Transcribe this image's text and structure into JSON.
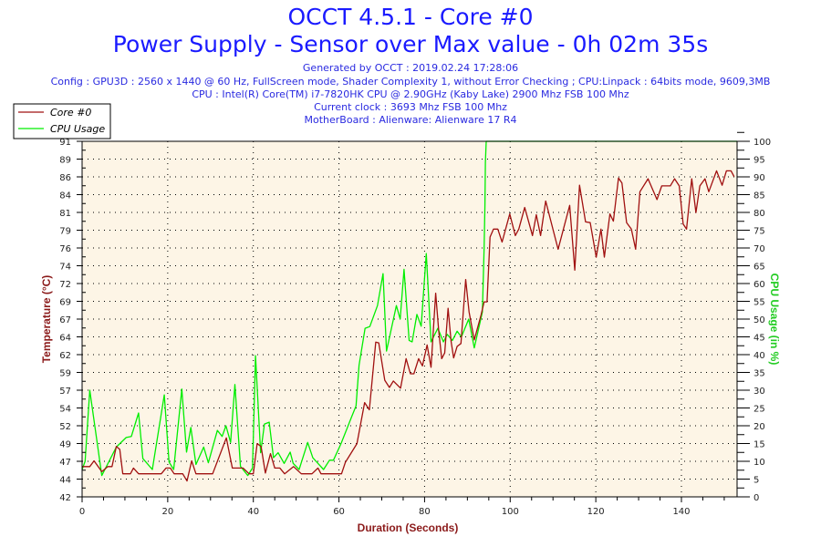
{
  "header": {
    "title": "OCCT 4.5.1 - Core #0",
    "subtitle": "Power Supply - Sensor over Max value - 0h 02m 35s",
    "generated": "Generated by OCCT : 2019.02.24 17:28:06",
    "config": "Config : GPU3D : 2560 x 1440 @ 60 Hz, FullScreen mode, Shader Complexity 1, without Error Checking ; CPU:Linpack : 64bits mode, 9609,3MB",
    "cpu": "CPU : Intel(R) Core(TM) i7-7820HK CPU @ 2.90GHz (Kaby Lake) 2900 Mhz FSB 100 Mhz",
    "clock": "Current clock : 3693 Mhz FSB 100 Mhz",
    "motherboard": "MotherBoard : Alienware: Alienware 17 R4"
  },
  "chart_data": {
    "type": "line",
    "xlabel": "Duration (Seconds)",
    "ylabel_left": "Temperature (°C)",
    "ylabel_right": "CPU Usage (in %)",
    "xlim": [
      0,
      153
    ],
    "ylim_left": [
      42,
      91.4
    ],
    "ylim_right": [
      0,
      100
    ],
    "x_ticks": [
      0,
      20,
      40,
      60,
      80,
      100,
      120,
      140
    ],
    "y_left_ticks": [
      "42",
      "44",
      "47",
      "49",
      "52",
      "54",
      "57",
      "59",
      "62",
      "64",
      "67",
      "69",
      "72",
      "74",
      "76",
      "79",
      "81",
      "84",
      "86",
      "89",
      "91"
    ],
    "y_right_ticks": [
      "0",
      "5",
      "10",
      "15",
      "20",
      "25",
      "30",
      "35",
      "40",
      "45",
      "50",
      "55",
      "60",
      "65",
      "70",
      "75",
      "80",
      "85",
      "90",
      "95",
      "100"
    ],
    "grid": true,
    "legend_position": "top-left",
    "colors": {
      "core": "#a01010",
      "cpu": "#00ee00",
      "axis_left": "#8b1a1a",
      "axis_right": "#22cc22",
      "plot_bg": "#fdf5e6"
    },
    "series": [
      {
        "name": "Core #0",
        "axis": "left",
        "points": [
          [
            0,
            46.2
          ],
          [
            1.8,
            46.2
          ],
          [
            2.8,
            47
          ],
          [
            4.6,
            45.5
          ],
          [
            6,
            46.2
          ],
          [
            7,
            46.2
          ],
          [
            8,
            49
          ],
          [
            8.8,
            48.6
          ],
          [
            9.5,
            45.2
          ],
          [
            11.3,
            45.2
          ],
          [
            12,
            46
          ],
          [
            13.2,
            45.2
          ],
          [
            18.5,
            45.2
          ],
          [
            19.6,
            46
          ],
          [
            20.6,
            46
          ],
          [
            21.5,
            45.2
          ],
          [
            23.5,
            45.2
          ],
          [
            24.5,
            44.2
          ],
          [
            25.6,
            47
          ],
          [
            26.6,
            45.2
          ],
          [
            30.5,
            45.2
          ],
          [
            33.7,
            50.2
          ],
          [
            35.1,
            46
          ],
          [
            37.6,
            46
          ],
          [
            39,
            45.2
          ],
          [
            40,
            45.2
          ],
          [
            40.9,
            49.4
          ],
          [
            41.8,
            49
          ],
          [
            42.8,
            45.3
          ],
          [
            44,
            48
          ],
          [
            45,
            46
          ],
          [
            46.2,
            46
          ],
          [
            47.3,
            45.2
          ],
          [
            49.4,
            46.2
          ],
          [
            51.2,
            45.2
          ],
          [
            53.7,
            45.2
          ],
          [
            55.1,
            46
          ],
          [
            55.8,
            45.2
          ],
          [
            59.7,
            45.2
          ],
          [
            60.6,
            45.2
          ],
          [
            61.5,
            46.8
          ],
          [
            64.2,
            49.4
          ],
          [
            66,
            55.1
          ],
          [
            67.1,
            54.1
          ],
          [
            68.6,
            63.5
          ],
          [
            69.3,
            63.4
          ],
          [
            70.7,
            58.2
          ],
          [
            71.8,
            57.2
          ],
          [
            72.7,
            58.1
          ],
          [
            74.4,
            57.1
          ],
          [
            75.7,
            61.2
          ],
          [
            76.7,
            59.1
          ],
          [
            77.5,
            59.1
          ],
          [
            78.6,
            61.2
          ],
          [
            79.5,
            60.2
          ],
          [
            80.6,
            63.1
          ],
          [
            81.5,
            60
          ],
          [
            82.6,
            70.3
          ],
          [
            83.3,
            65.1
          ],
          [
            84,
            61.2
          ],
          [
            84.7,
            62
          ],
          [
            85.5,
            68.2
          ],
          [
            86.2,
            63.6
          ],
          [
            86.8,
            61.3
          ],
          [
            87.6,
            62.9
          ],
          [
            88.5,
            63.3
          ],
          [
            89.6,
            72.2
          ],
          [
            90.4,
            67.7
          ],
          [
            91.6,
            63.8
          ],
          [
            93.2,
            67.3
          ],
          [
            93.9,
            69.1
          ],
          [
            94.6,
            69.1
          ],
          [
            95.3,
            78.1
          ],
          [
            96.1,
            79.2
          ],
          [
            97.1,
            79.2
          ],
          [
            98.1,
            77.4
          ],
          [
            99.9,
            81.3
          ],
          [
            101.2,
            78.3
          ],
          [
            102,
            79.2
          ],
          [
            103.4,
            82.2
          ],
          [
            105.2,
            78.3
          ],
          [
            106.1,
            81.2
          ],
          [
            107.1,
            78.3
          ],
          [
            108.3,
            83.1
          ],
          [
            111.2,
            76.4
          ],
          [
            113.9,
            82.5
          ],
          [
            115.1,
            73.5
          ],
          [
            116.2,
            85.3
          ],
          [
            117.6,
            80.2
          ],
          [
            118.7,
            80.1
          ],
          [
            120.1,
            75.3
          ],
          [
            121.2,
            79.2
          ],
          [
            122,
            75.3
          ],
          [
            123.3,
            81.3
          ],
          [
            124.1,
            80.3
          ],
          [
            125.3,
            86.3
          ],
          [
            126.1,
            85.6
          ],
          [
            127.2,
            80.1
          ],
          [
            128.3,
            79.2
          ],
          [
            129.3,
            76.4
          ],
          [
            130.3,
            84.4
          ],
          [
            132.2,
            86.2
          ],
          [
            134.3,
            83.3
          ],
          [
            135.4,
            85.2
          ],
          [
            137.4,
            85.2
          ],
          [
            138.4,
            86.2
          ],
          [
            139.5,
            85.2
          ],
          [
            140.4,
            79.9
          ],
          [
            141.2,
            79.2
          ],
          [
            142.4,
            86.2
          ],
          [
            143.4,
            81.5
          ],
          [
            144.3,
            85.2
          ],
          [
            145.5,
            86.2
          ],
          [
            146.4,
            84.4
          ],
          [
            148.2,
            87.3
          ],
          [
            149.5,
            85.3
          ],
          [
            150.5,
            87.3
          ],
          [
            151.6,
            87.3
          ],
          [
            152.3,
            86.5
          ]
        ]
      },
      {
        "name": "CPU Usage",
        "axis": "right",
        "points": [
          [
            0,
            7.7
          ],
          [
            0.7,
            10
          ],
          [
            1.8,
            30
          ],
          [
            4.6,
            6
          ],
          [
            8,
            14
          ],
          [
            10.3,
            16.7
          ],
          [
            11.5,
            17
          ],
          [
            13.2,
            23.6
          ],
          [
            14.2,
            10.8
          ],
          [
            16.4,
            7.7
          ],
          [
            19.2,
            28.7
          ],
          [
            20.3,
            9.8
          ],
          [
            21.4,
            7.7
          ],
          [
            23.3,
            30.3
          ],
          [
            24.4,
            12.6
          ],
          [
            25.4,
            19.5
          ],
          [
            26.6,
            9.1
          ],
          [
            28.4,
            14
          ],
          [
            29.5,
            9.6
          ],
          [
            31.6,
            18.7
          ],
          [
            32.7,
            17
          ],
          [
            33.6,
            20
          ],
          [
            34.7,
            15.3
          ],
          [
            35.7,
            31.6
          ],
          [
            37,
            8.6
          ],
          [
            38.7,
            6
          ],
          [
            39.8,
            8.1
          ],
          [
            40.5,
            39.7
          ],
          [
            41.7,
            12.4
          ],
          [
            42.6,
            20.5
          ],
          [
            43.7,
            21
          ],
          [
            44.7,
            11
          ],
          [
            45.8,
            12.4
          ],
          [
            47.2,
            9.4
          ],
          [
            48.6,
            12.6
          ],
          [
            49.3,
            9.4
          ],
          [
            50.7,
            7.7
          ],
          [
            52.7,
            15.3
          ],
          [
            53.9,
            11
          ],
          [
            56.4,
            7.7
          ],
          [
            57.8,
            10.3
          ],
          [
            58.7,
            10.3
          ],
          [
            60.5,
            15
          ],
          [
            63,
            22.6
          ],
          [
            64,
            25.6
          ],
          [
            64.7,
            37
          ],
          [
            66.1,
            47.4
          ],
          [
            67.2,
            47.9
          ],
          [
            69,
            53.8
          ],
          [
            70.3,
            62.8
          ],
          [
            71.1,
            41
          ],
          [
            73.4,
            53.8
          ],
          [
            74.3,
            50
          ],
          [
            75.2,
            64
          ],
          [
            76.4,
            44
          ],
          [
            77.1,
            43.6
          ],
          [
            78.2,
            51.3
          ],
          [
            79.2,
            48
          ],
          [
            80.4,
            68.4
          ],
          [
            81.5,
            43.6
          ],
          [
            83.1,
            47.4
          ],
          [
            84.4,
            43.6
          ],
          [
            85.3,
            45.7
          ],
          [
            86.5,
            44
          ],
          [
            87.6,
            46.6
          ],
          [
            88.6,
            45
          ],
          [
            90.3,
            50
          ],
          [
            91.6,
            41.9
          ],
          [
            93.5,
            52
          ],
          [
            93.9,
            70
          ],
          [
            94.1,
            82
          ],
          [
            94.2,
            94
          ],
          [
            94.4,
            100
          ],
          [
            153,
            100
          ]
        ]
      }
    ]
  }
}
